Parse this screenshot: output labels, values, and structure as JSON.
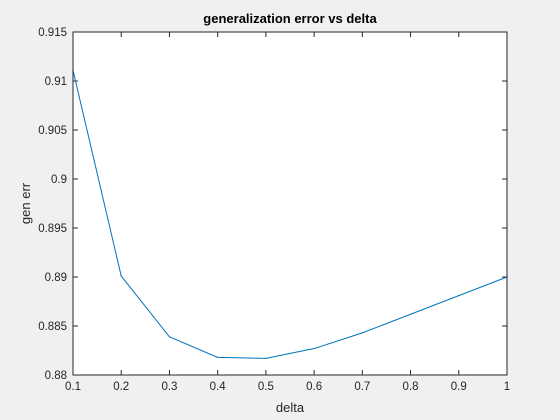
{
  "chart_data": {
    "type": "line",
    "title": "generalization error vs delta",
    "xlabel": "delta",
    "ylabel": "gen err",
    "xlim": [
      0.1,
      1
    ],
    "ylim": [
      0.88,
      0.915
    ],
    "x_ticks": [
      "0.1",
      "0.2",
      "0.3",
      "0.4",
      "0.5",
      "0.6",
      "0.7",
      "0.8",
      "0.9",
      "1"
    ],
    "y_ticks": [
      "0.88",
      "0.885",
      "0.89",
      "0.895",
      "0.9",
      "0.905",
      "0.91",
      "0.915"
    ],
    "grid": false,
    "legend": "none",
    "series": [
      {
        "color": "#0072bd",
        "x": [
          0.1,
          0.2,
          0.3,
          0.4,
          0.5,
          0.6,
          0.7,
          0.8,
          0.9,
          1.0
        ],
        "y": [
          0.9111,
          0.8901,
          0.8839,
          0.8818,
          0.8817,
          0.8827,
          0.8843,
          0.8862,
          0.8881,
          0.89
        ]
      }
    ]
  }
}
